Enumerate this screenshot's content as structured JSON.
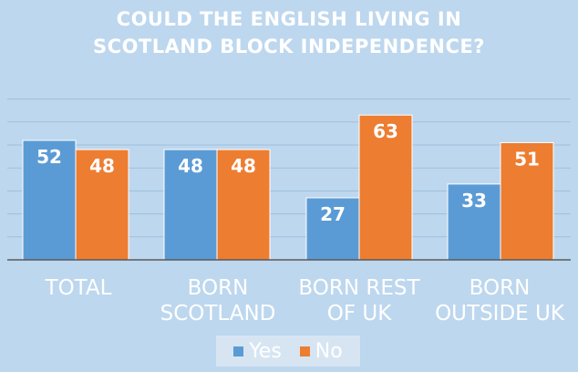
{
  "chart_data": {
    "type": "bar",
    "title_lines": [
      "COULD THE ENGLISH LIVING IN",
      "SCOTLAND BLOCK INDEPENDENCE?"
    ],
    "categories": [
      [
        "TOTAL"
      ],
      [
        "BORN",
        "SCOTLAND"
      ],
      [
        "BORN REST",
        "OF UK"
      ],
      [
        "BORN",
        "OUTSIDE UK"
      ]
    ],
    "series": [
      {
        "name": "Yes",
        "color": "#5b9bd5",
        "values": [
          52,
          48,
          27,
          33
        ]
      },
      {
        "name": "No",
        "color": "#ed7d31",
        "values": [
          48,
          48,
          63,
          51
        ]
      }
    ],
    "ylim": [
      0,
      70
    ],
    "grid": true,
    "legend_position": "bottom"
  }
}
